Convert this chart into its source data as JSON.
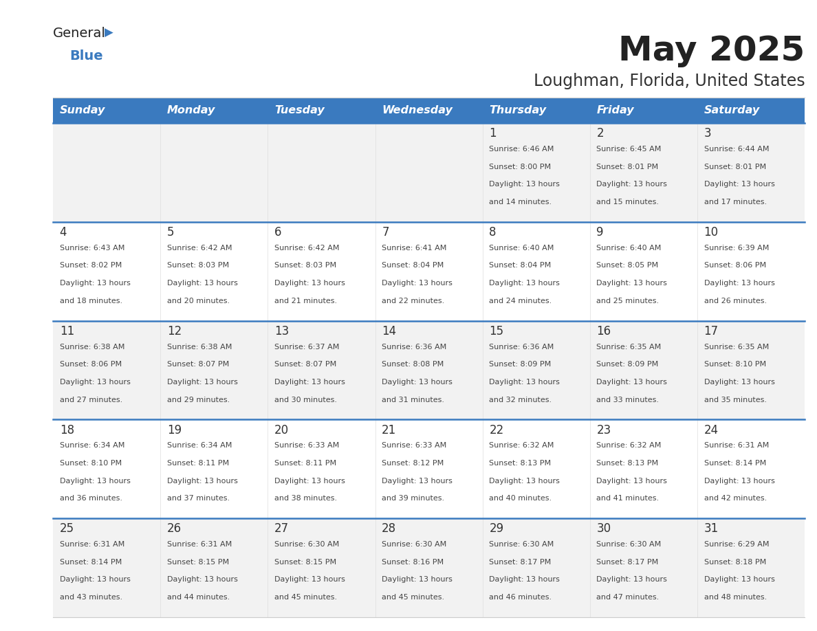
{
  "title": "May 2025",
  "subtitle": "Loughman, Florida, United States",
  "header_bg": "#3a7abf",
  "header_text_color": "#ffffff",
  "days_of_week": [
    "Sunday",
    "Monday",
    "Tuesday",
    "Wednesday",
    "Thursday",
    "Friday",
    "Saturday"
  ],
  "row_bg_even": "#f2f2f2",
  "row_bg_odd": "#ffffff",
  "divider_color": "#3a7abf",
  "cell_text_color": "#333333",
  "day_num_color": "#333333",
  "calendar_data": [
    [
      {
        "day": "",
        "sunrise": "",
        "sunset": "",
        "daylight": ""
      },
      {
        "day": "",
        "sunrise": "",
        "sunset": "",
        "daylight": ""
      },
      {
        "day": "",
        "sunrise": "",
        "sunset": "",
        "daylight": ""
      },
      {
        "day": "",
        "sunrise": "",
        "sunset": "",
        "daylight": ""
      },
      {
        "day": "1",
        "sunrise": "6:46 AM",
        "sunset": "8:00 PM",
        "daylight": "13 hours and 14 minutes."
      },
      {
        "day": "2",
        "sunrise": "6:45 AM",
        "sunset": "8:01 PM",
        "daylight": "13 hours and 15 minutes."
      },
      {
        "day": "3",
        "sunrise": "6:44 AM",
        "sunset": "8:01 PM",
        "daylight": "13 hours and 17 minutes."
      }
    ],
    [
      {
        "day": "4",
        "sunrise": "6:43 AM",
        "sunset": "8:02 PM",
        "daylight": "13 hours and 18 minutes."
      },
      {
        "day": "5",
        "sunrise": "6:42 AM",
        "sunset": "8:03 PM",
        "daylight": "13 hours and 20 minutes."
      },
      {
        "day": "6",
        "sunrise": "6:42 AM",
        "sunset": "8:03 PM",
        "daylight": "13 hours and 21 minutes."
      },
      {
        "day": "7",
        "sunrise": "6:41 AM",
        "sunset": "8:04 PM",
        "daylight": "13 hours and 22 minutes."
      },
      {
        "day": "8",
        "sunrise": "6:40 AM",
        "sunset": "8:04 PM",
        "daylight": "13 hours and 24 minutes."
      },
      {
        "day": "9",
        "sunrise": "6:40 AM",
        "sunset": "8:05 PM",
        "daylight": "13 hours and 25 minutes."
      },
      {
        "day": "10",
        "sunrise": "6:39 AM",
        "sunset": "8:06 PM",
        "daylight": "13 hours and 26 minutes."
      }
    ],
    [
      {
        "day": "11",
        "sunrise": "6:38 AM",
        "sunset": "8:06 PM",
        "daylight": "13 hours and 27 minutes."
      },
      {
        "day": "12",
        "sunrise": "6:38 AM",
        "sunset": "8:07 PM",
        "daylight": "13 hours and 29 minutes."
      },
      {
        "day": "13",
        "sunrise": "6:37 AM",
        "sunset": "8:07 PM",
        "daylight": "13 hours and 30 minutes."
      },
      {
        "day": "14",
        "sunrise": "6:36 AM",
        "sunset": "8:08 PM",
        "daylight": "13 hours and 31 minutes."
      },
      {
        "day": "15",
        "sunrise": "6:36 AM",
        "sunset": "8:09 PM",
        "daylight": "13 hours and 32 minutes."
      },
      {
        "day": "16",
        "sunrise": "6:35 AM",
        "sunset": "8:09 PM",
        "daylight": "13 hours and 33 minutes."
      },
      {
        "day": "17",
        "sunrise": "6:35 AM",
        "sunset": "8:10 PM",
        "daylight": "13 hours and 35 minutes."
      }
    ],
    [
      {
        "day": "18",
        "sunrise": "6:34 AM",
        "sunset": "8:10 PM",
        "daylight": "13 hours and 36 minutes."
      },
      {
        "day": "19",
        "sunrise": "6:34 AM",
        "sunset": "8:11 PM",
        "daylight": "13 hours and 37 minutes."
      },
      {
        "day": "20",
        "sunrise": "6:33 AM",
        "sunset": "8:11 PM",
        "daylight": "13 hours and 38 minutes."
      },
      {
        "day": "21",
        "sunrise": "6:33 AM",
        "sunset": "8:12 PM",
        "daylight": "13 hours and 39 minutes."
      },
      {
        "day": "22",
        "sunrise": "6:32 AM",
        "sunset": "8:13 PM",
        "daylight": "13 hours and 40 minutes."
      },
      {
        "day": "23",
        "sunrise": "6:32 AM",
        "sunset": "8:13 PM",
        "daylight": "13 hours and 41 minutes."
      },
      {
        "day": "24",
        "sunrise": "6:31 AM",
        "sunset": "8:14 PM",
        "daylight": "13 hours and 42 minutes."
      }
    ],
    [
      {
        "day": "25",
        "sunrise": "6:31 AM",
        "sunset": "8:14 PM",
        "daylight": "13 hours and 43 minutes."
      },
      {
        "day": "26",
        "sunrise": "6:31 AM",
        "sunset": "8:15 PM",
        "daylight": "13 hours and 44 minutes."
      },
      {
        "day": "27",
        "sunrise": "6:30 AM",
        "sunset": "8:15 PM",
        "daylight": "13 hours and 45 minutes."
      },
      {
        "day": "28",
        "sunrise": "6:30 AM",
        "sunset": "8:16 PM",
        "daylight": "13 hours and 45 minutes."
      },
      {
        "day": "29",
        "sunrise": "6:30 AM",
        "sunset": "8:17 PM",
        "daylight": "13 hours and 46 minutes."
      },
      {
        "day": "30",
        "sunrise": "6:30 AM",
        "sunset": "8:17 PM",
        "daylight": "13 hours and 47 minutes."
      },
      {
        "day": "31",
        "sunrise": "6:29 AM",
        "sunset": "8:18 PM",
        "daylight": "13 hours and 48 minutes."
      }
    ]
  ]
}
